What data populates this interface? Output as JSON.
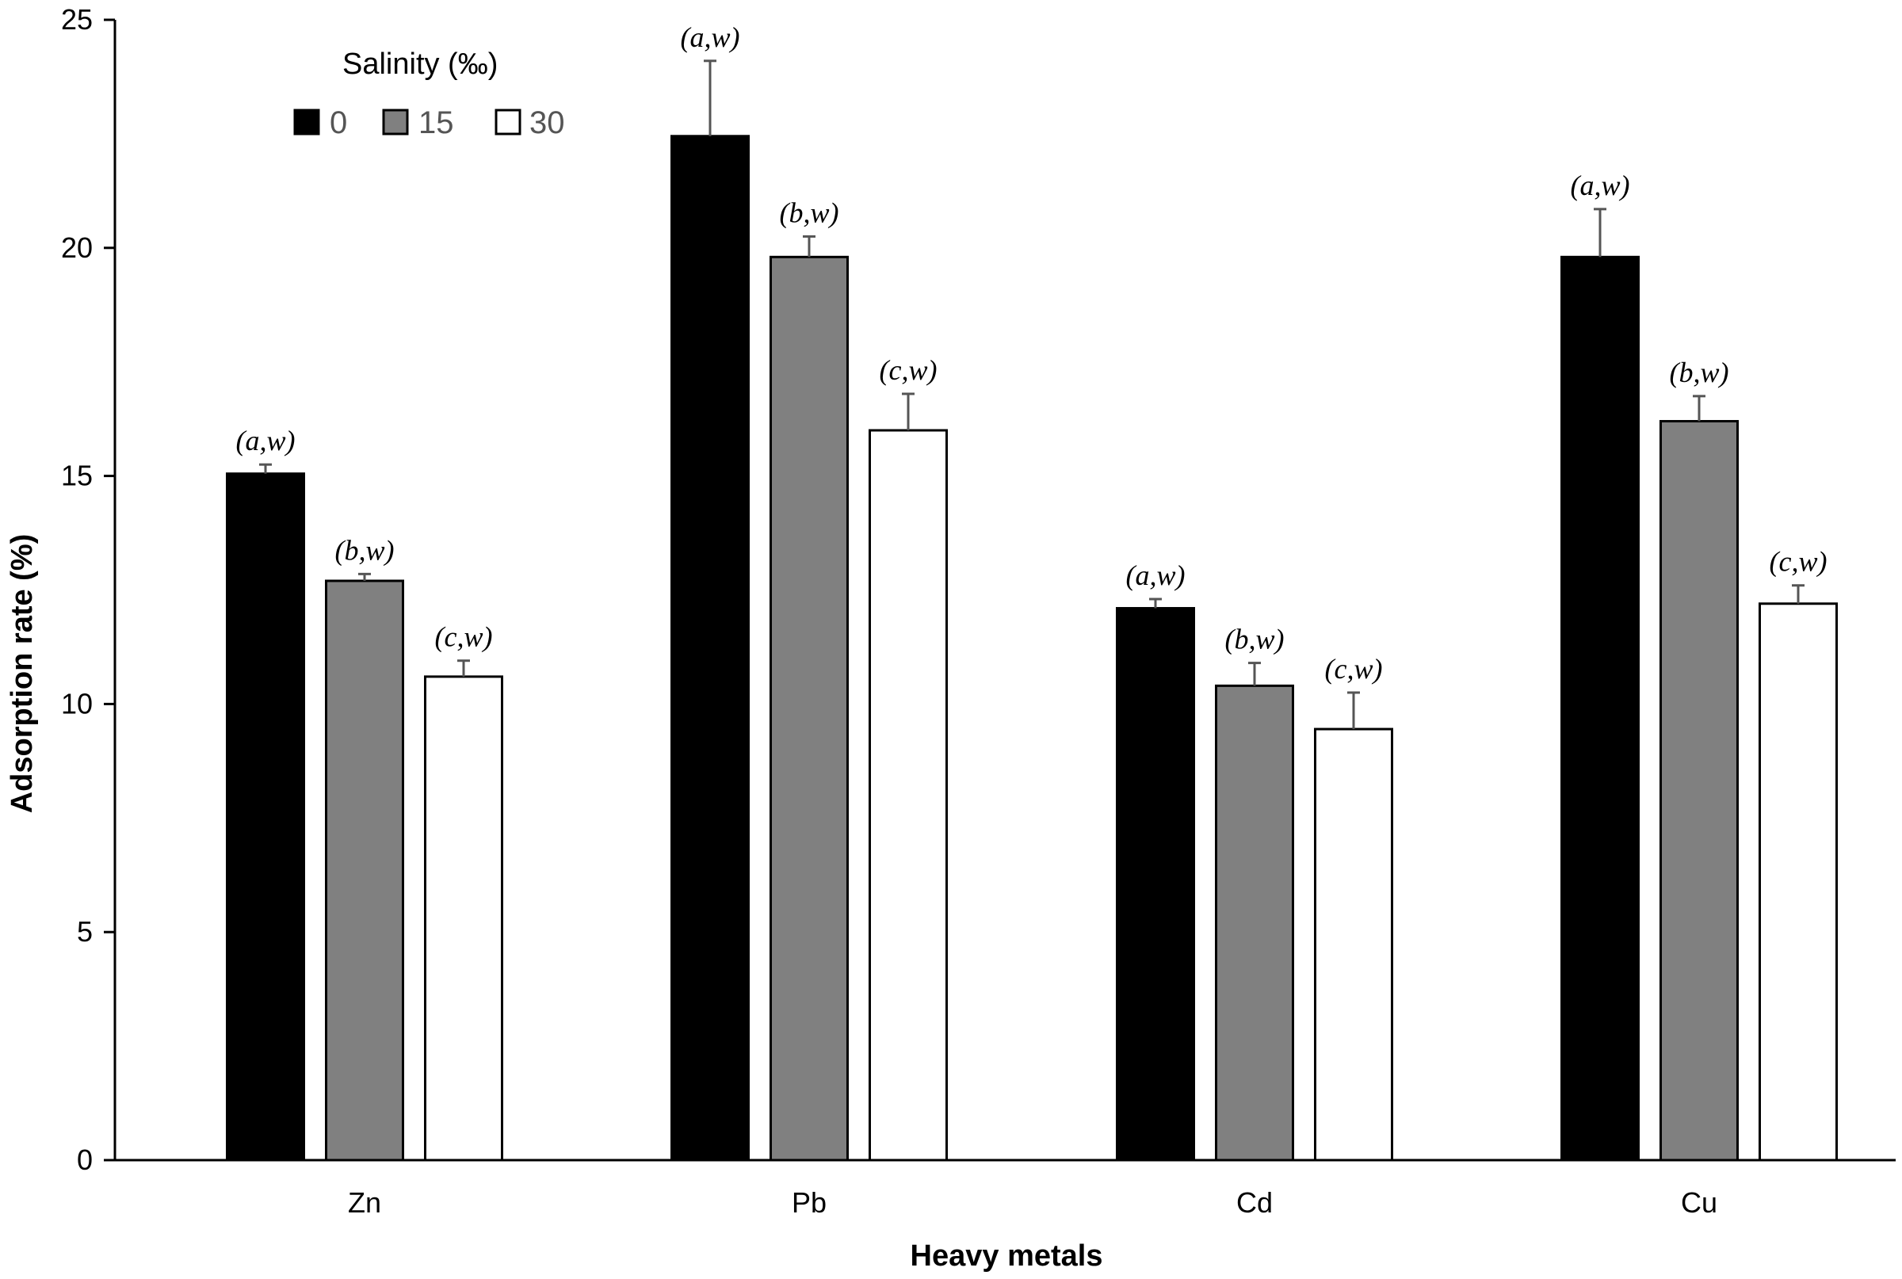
{
  "chart_data": {
    "type": "bar",
    "title": "",
    "xlabel": "Heavy metals",
    "ylabel": "Adsorption rate (%)",
    "ylim": [
      0,
      25
    ],
    "yticks": [
      0,
      5,
      10,
      15,
      20,
      25
    ],
    "grid": false,
    "categories": [
      "Zn",
      "Pb",
      "Cd",
      "Cu"
    ],
    "legend": {
      "title": "Salinity (‰)",
      "placement": "top-left"
    },
    "series": [
      {
        "name": "0",
        "color": "#000000",
        "values": [
          15.05,
          22.45,
          12.1,
          19.8
        ],
        "errors": [
          0.2,
          1.65,
          0.2,
          1.05
        ],
        "labels": [
          "(a,w)",
          "(a,w)",
          "(a,w)",
          "(a,w)"
        ]
      },
      {
        "name": "15",
        "color": "#808080",
        "values": [
          12.7,
          19.8,
          10.4,
          16.2
        ],
        "errors": [
          0.15,
          0.45,
          0.5,
          0.55
        ],
        "labels": [
          "(b,w)",
          "(b,w)",
          "(b,w)",
          "(b,w)"
        ]
      },
      {
        "name": "30",
        "color": "#ffffff",
        "values": [
          10.6,
          16.0,
          9.45,
          12.2
        ],
        "errors": [
          0.35,
          0.8,
          0.8,
          0.4
        ],
        "labels": [
          "(c,w)",
          "(c,w)",
          "(c,w)",
          "(c,w)"
        ]
      }
    ]
  }
}
